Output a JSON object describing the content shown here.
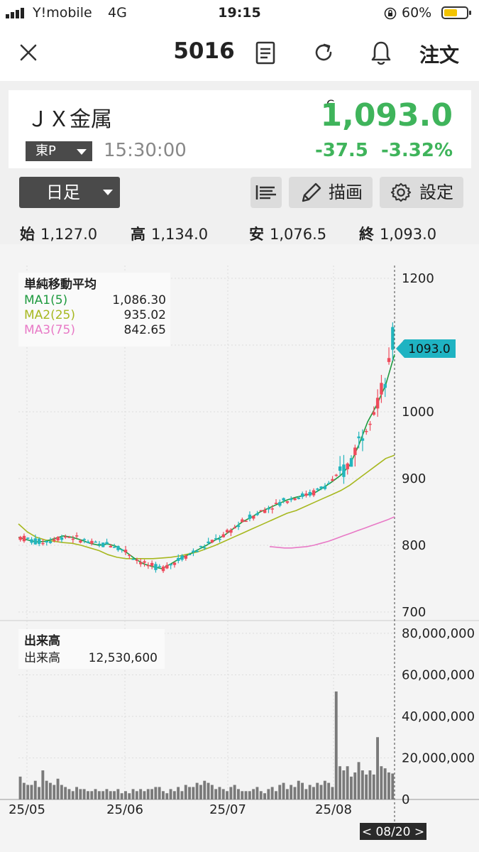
{
  "status_bar": {
    "carrier": "Y!mobile",
    "network": "4G",
    "time": "19:15",
    "battery_pct": "60%",
    "battery_level": 0.6
  },
  "nav": {
    "code": "5016",
    "order_label": "注文",
    "icons": [
      "close-icon",
      "document-icon",
      "refresh-icon",
      "bell-icon"
    ]
  },
  "quote": {
    "name": "ＪＸ金属",
    "flag": "C",
    "price": "1,093.0",
    "market": "東P",
    "time": "15:30:00",
    "change": "-37.5",
    "change_pct": "-3.32%",
    "price_color": "#3fb45b"
  },
  "toolbar": {
    "period": "日足",
    "draw_label": "描画",
    "settings_label": "設定"
  },
  "ohlc": {
    "open_label": "始",
    "open": "1,127.0",
    "high_label": "高",
    "high": "1,134.0",
    "low_label": "安",
    "low": "1,076.5",
    "close_label": "終",
    "close": "1,093.0"
  },
  "chart_data": [
    {
      "type": "candlestick",
      "legend_title": "単純移動平均",
      "legend": [
        {
          "name": "MA1(5)",
          "value": "1,086.30",
          "color": "#1f9a3f"
        },
        {
          "name": "MA2(25)",
          "value": "935.02",
          "color": "#a7b81f"
        },
        {
          "name": "MA3(75)",
          "value": "842.65",
          "color": "#e879c6"
        }
      ],
      "yticks": [
        "1200",
        "1100",
        "1000",
        "900",
        "800",
        "700"
      ],
      "ylim": [
        700,
        1200
      ],
      "current_label": "1093.0",
      "up_color": "#ef4b5c",
      "down_color": "#23b5bd",
      "x_labels": [
        "25/05",
        "25/06",
        "25/07",
        "25/08"
      ],
      "ma1": [
        812,
        808,
        805,
        806,
        810,
        814,
        812,
        808,
        803,
        800,
        802,
        798,
        790,
        780,
        772,
        768,
        765,
        772,
        780,
        786,
        793,
        800,
        808,
        815,
        825,
        835,
        842,
        850,
        856,
        862,
        868,
        872,
        875,
        878,
        886,
        895,
        905,
        920,
        950,
        985,
        1010,
        1040,
        1086
      ],
      "ma2": [
        832,
        820,
        812,
        808,
        806,
        804,
        803,
        800,
        796,
        792,
        786,
        782,
        780,
        780,
        780,
        780,
        781,
        782,
        784,
        787,
        790,
        795,
        800,
        806,
        812,
        818,
        824,
        830,
        836,
        842,
        848,
        852,
        858,
        864,
        870,
        876,
        882,
        890,
        900,
        910,
        920,
        930,
        935
      ],
      "ma3": [
        798,
        797,
        796,
        796,
        797,
        798,
        800,
        803,
        806,
        810,
        814,
        818,
        822,
        826,
        830,
        834,
        838,
        842.65
      ]
    },
    {
      "type": "bar",
      "legend_title": "出来高",
      "legend_value_label": "出来高",
      "legend_value": "12,530,600",
      "yticks": [
        "80,000,000",
        "60,000,000",
        "40,000,000",
        "20,000,000",
        "0"
      ],
      "ylim": [
        0,
        80000000
      ],
      "bar_color": "#7a7a7a",
      "values": [
        11,
        8,
        7,
        7,
        9,
        6,
        14,
        9,
        8,
        7,
        10,
        7,
        6,
        5,
        4,
        6,
        5,
        5,
        4,
        4,
        5,
        4,
        4,
        5,
        4,
        4,
        5,
        3,
        4,
        3,
        5,
        4,
        5,
        4,
        5,
        5,
        6,
        6,
        4,
        3,
        5,
        4,
        6,
        4,
        7,
        6,
        6,
        8,
        7,
        9,
        8,
        7,
        5,
        6,
        5,
        4,
        6,
        7,
        5,
        4,
        4,
        4,
        5,
        6,
        4,
        3,
        5,
        6,
        4,
        7,
        8,
        5,
        7,
        6,
        9,
        8,
        5,
        7,
        6,
        8,
        7,
        9,
        8,
        6,
        52,
        16,
        14,
        16,
        11,
        13,
        18,
        14,
        12,
        14,
        12,
        30,
        16,
        15,
        13,
        12.5
      ],
      "date_label": "< 08/20 >"
    }
  ]
}
